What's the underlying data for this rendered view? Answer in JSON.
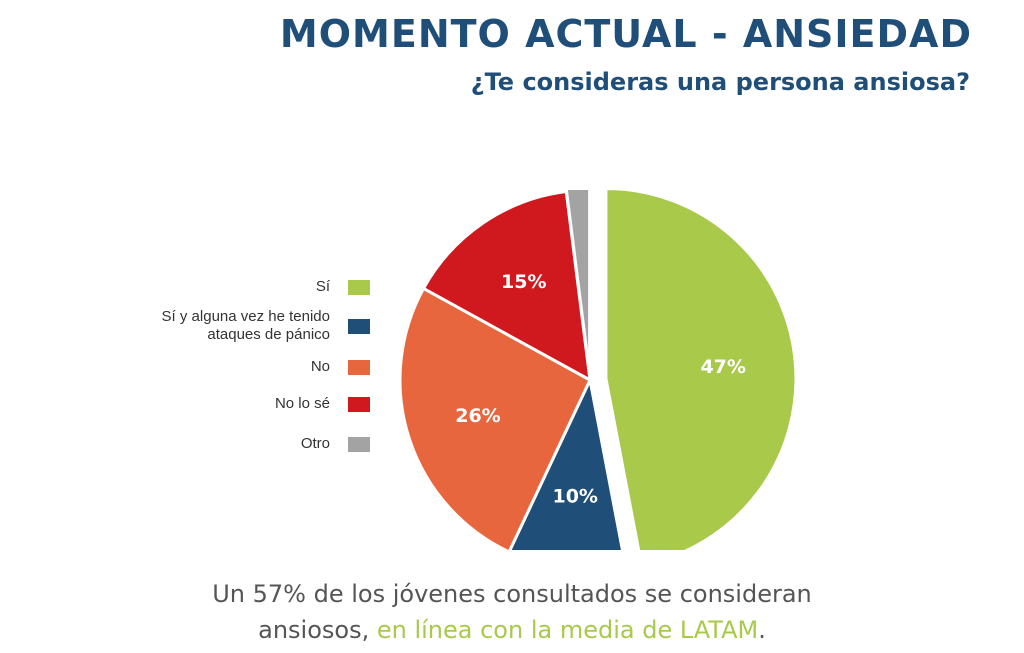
{
  "header": {
    "title": "MOMENTO ACTUAL - ANSIEDAD",
    "subtitle": "¿Te consideras una persona ansiosa?"
  },
  "legend": [
    {
      "label": "Sí",
      "color": "#a8c94a"
    },
    {
      "label": "Sí y alguna vez he tenido ataques de pánico",
      "color": "#1f4e79"
    },
    {
      "label": "No",
      "color": "#e8663d"
    },
    {
      "label": "No lo sé",
      "color": "#d0191f"
    },
    {
      "label": "Otro",
      "color": "#a3a3a3"
    }
  ],
  "chart_data": {
    "type": "pie",
    "title": "¿Te consideras una persona ansiosa?",
    "slices": [
      {
        "label": "Sí",
        "value": 47,
        "display": "47%",
        "color": "#a8c94a",
        "exploded": true
      },
      {
        "label": "Sí y alguna vez he tenido ataques de pánico",
        "value": 10,
        "display": "10%",
        "color": "#1f4e79",
        "exploded": false
      },
      {
        "label": "No",
        "value": 26,
        "display": "26%",
        "color": "#e8663d",
        "exploded": false
      },
      {
        "label": "No lo sé",
        "value": 15,
        "display": "15%",
        "color": "#d0191f",
        "exploded": false
      },
      {
        "label": "Otro",
        "value": 2,
        "display": "2%",
        "color": "#a3a3a3",
        "exploded": false
      }
    ],
    "legend_position": "left"
  },
  "footer": {
    "line1": "Un 57% de los jóvenes consultados se consideran",
    "line2_prefix": "ansiosos, ",
    "line2_highlight": "en línea con la media de LATAM",
    "line2_suffix": "."
  }
}
